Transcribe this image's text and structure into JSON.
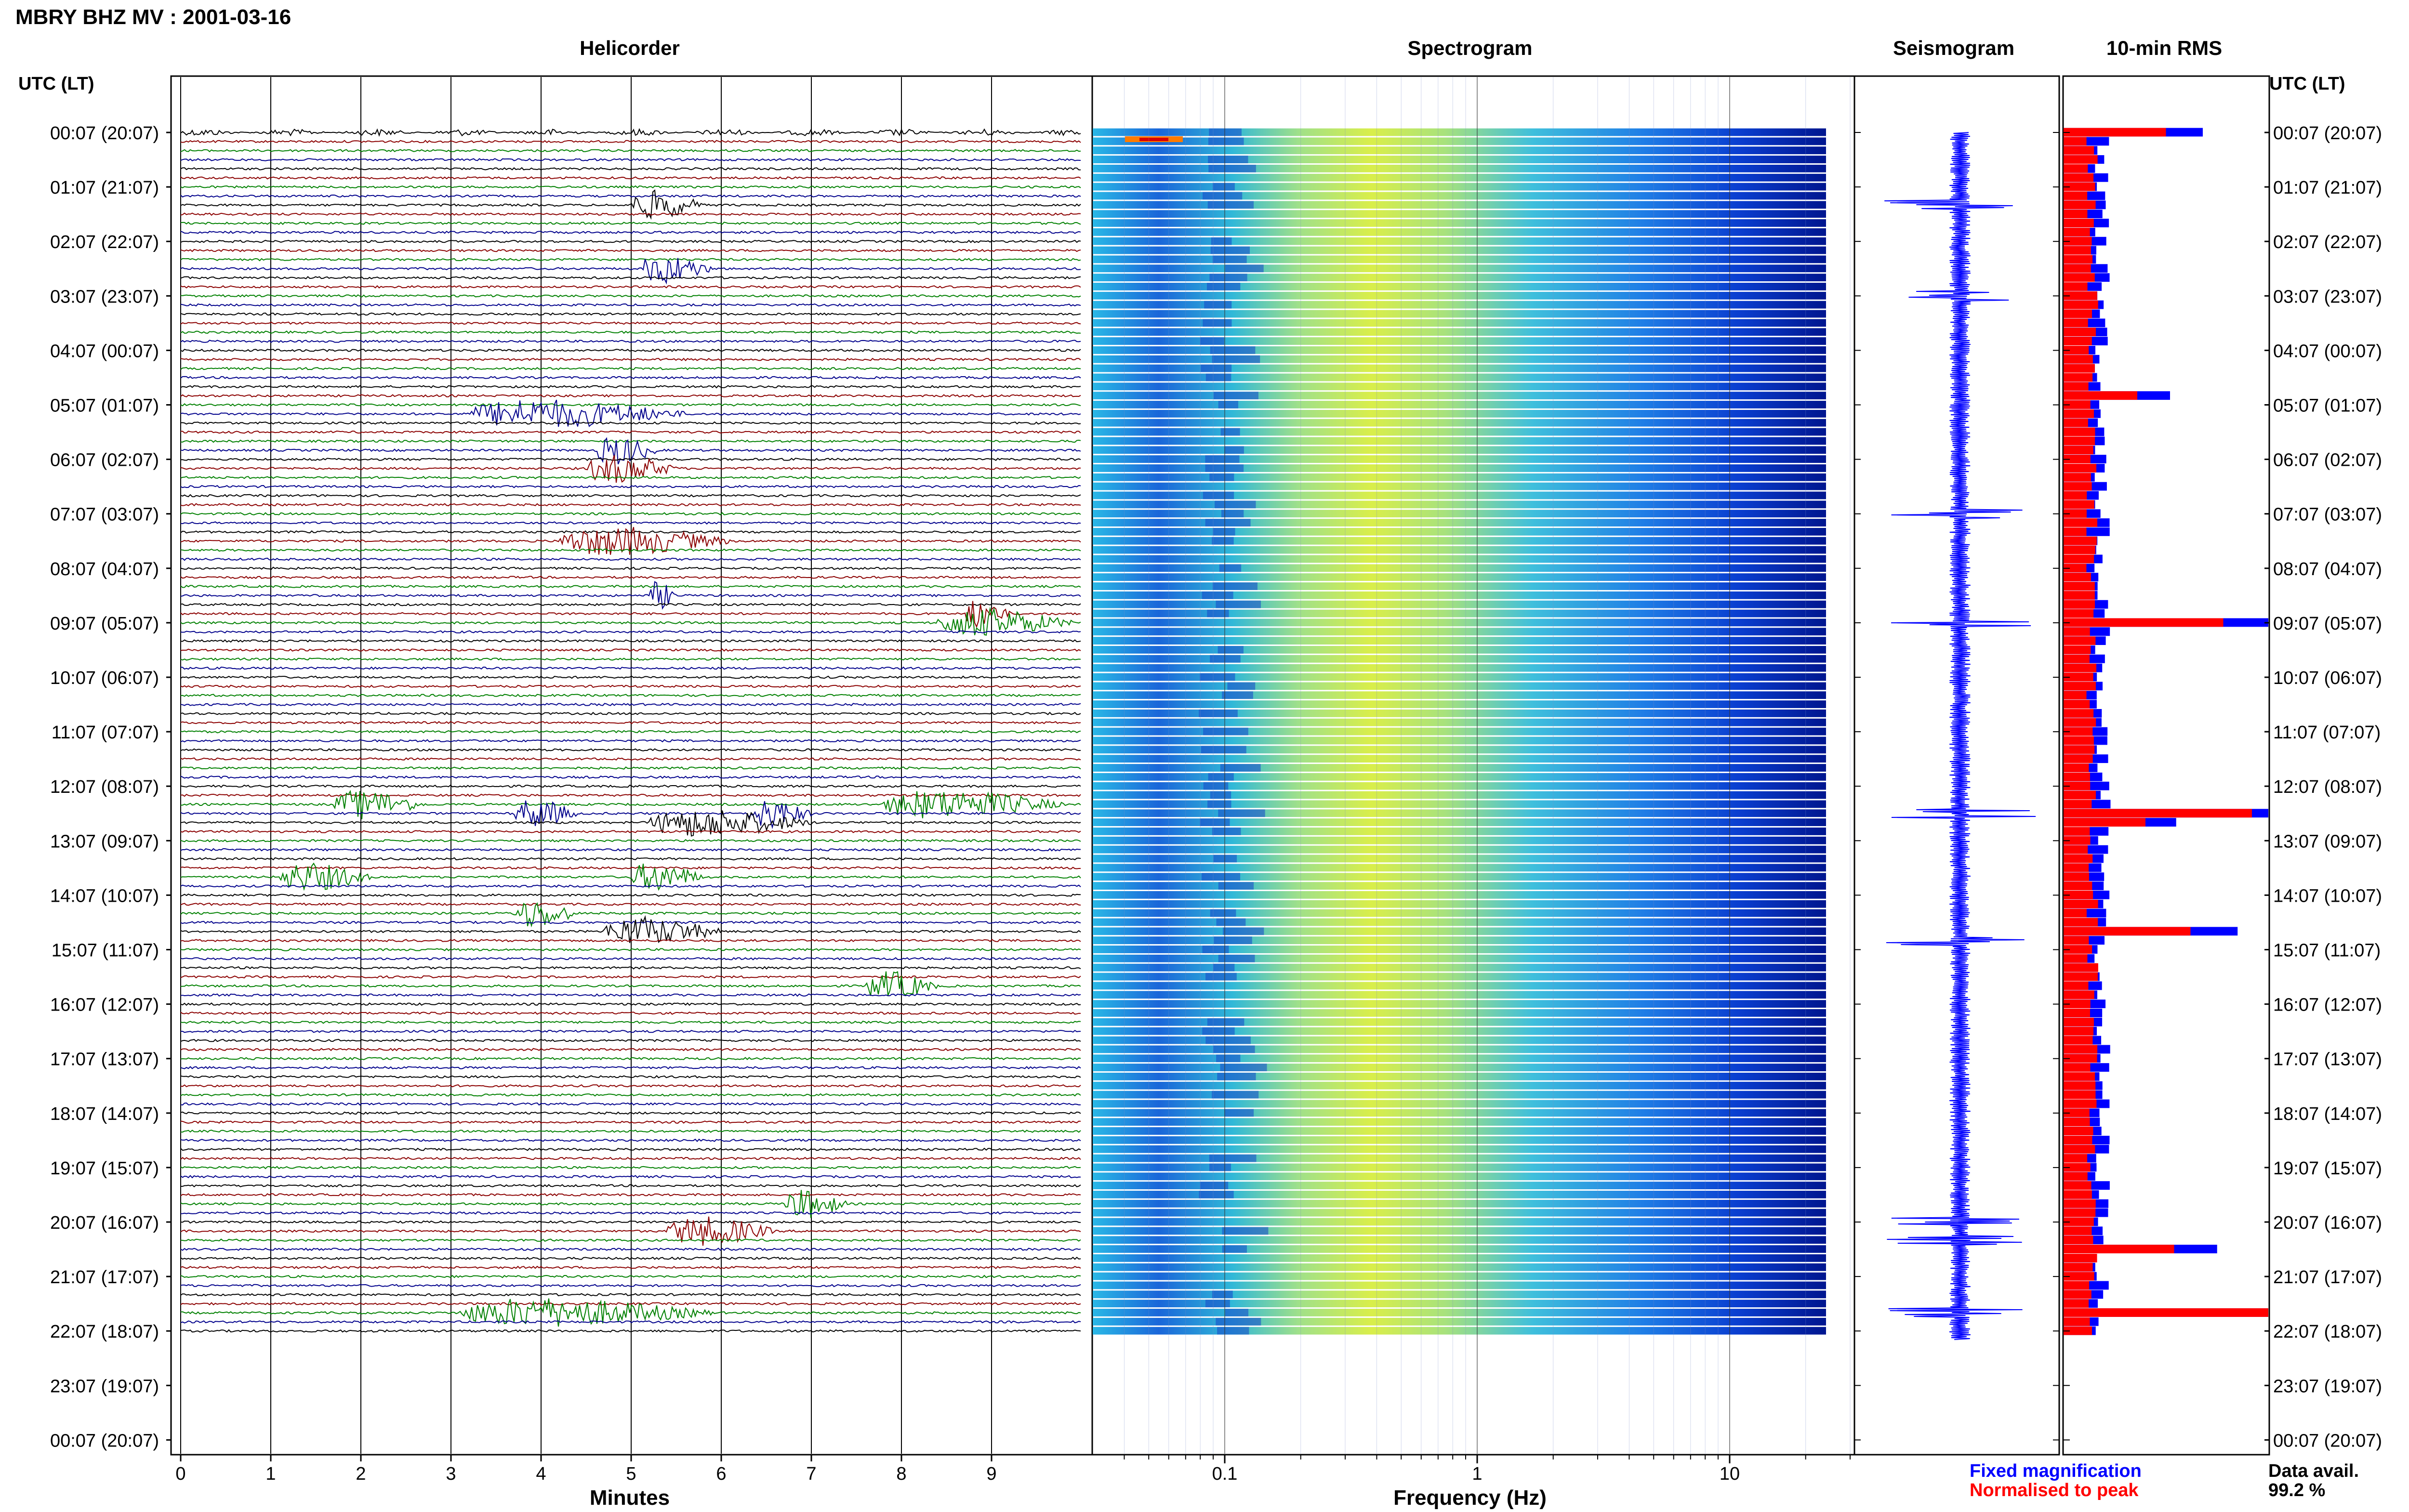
{
  "header": {
    "title": "MBRY BHZ MV : 2001-03-16",
    "utc_label_left": "UTC (LT)",
    "utc_label_right": "UTC (LT)"
  },
  "panels": {
    "helicorder": "Helicorder",
    "spectrogram": "Spectrogram",
    "seismogram": "Seismogram",
    "rms": "10-min RMS"
  },
  "time_labels": [
    "00:07 (20:07)",
    "01:07 (21:07)",
    "02:07 (22:07)",
    "03:07 (23:07)",
    "04:07 (00:07)",
    "05:07 (01:07)",
    "06:07 (02:07)",
    "07:07 (03:07)",
    "08:07 (04:07)",
    "09:07 (05:07)",
    "10:07 (06:07)",
    "11:07 (07:07)",
    "12:07 (08:07)",
    "13:07 (09:07)",
    "14:07 (10:07)",
    "15:07 (11:07)",
    "16:07 (12:07)",
    "17:07 (13:07)",
    "18:07 (14:07)",
    "19:07 (15:07)",
    "20:07 (16:07)",
    "21:07 (17:07)",
    "22:07 (18:07)",
    "23:07 (19:07)",
    "00:07 (20:07)"
  ],
  "legend": {
    "fixed": "Fixed magnification",
    "normalised": "Normalised to peak",
    "fixed_color": "#0000ff",
    "normalised_color": "#ff0000"
  },
  "data_availability": {
    "label": "Data avail.",
    "value": "99.2 %"
  },
  "trace_colors": [
    "#000000",
    "#8b0000",
    "#008000",
    "#00008b"
  ],
  "chart_data": [
    {
      "type": "line",
      "title": "Helicorder",
      "xlabel": "Minutes",
      "x_ticks": [
        "0",
        "1",
        "2",
        "3",
        "4",
        "5",
        "6",
        "7",
        "8",
        "9"
      ],
      "xlim": [
        0,
        10
      ],
      "rows_per_hour": 6,
      "row_minutes": 10,
      "grid": true,
      "event_windows": [
        {
          "row": 8,
          "minute_start": 5.0,
          "minute_end": 5.8
        },
        {
          "row": 15,
          "minute_start": 5.1,
          "minute_end": 5.9
        },
        {
          "row": 31,
          "minute_start": 3.2,
          "minute_end": 5.6
        },
        {
          "row": 35,
          "minute_start": 4.6,
          "minute_end": 5.3
        },
        {
          "row": 37,
          "minute_start": 4.5,
          "minute_end": 5.5
        },
        {
          "row": 45,
          "minute_start": 4.2,
          "minute_end": 6.1
        },
        {
          "row": 51,
          "minute_start": 5.2,
          "minute_end": 5.5
        },
        {
          "row": 53,
          "minute_start": 8.7,
          "minute_end": 9.2
        },
        {
          "row": 54,
          "minute_start": 8.4,
          "minute_end": 9.9
        },
        {
          "row": 74,
          "minute_start": 1.7,
          "minute_end": 2.7
        },
        {
          "row": 74,
          "minute_start": 7.8,
          "minute_end": 9.8
        },
        {
          "row": 75,
          "minute_start": 3.7,
          "minute_end": 4.4
        },
        {
          "row": 75,
          "minute_start": 6.3,
          "minute_end": 7.0
        },
        {
          "row": 76,
          "minute_start": 5.2,
          "minute_end": 7.0
        },
        {
          "row": 82,
          "minute_start": 1.1,
          "minute_end": 2.1
        },
        {
          "row": 82,
          "minute_start": 5.0,
          "minute_end": 5.8
        },
        {
          "row": 86,
          "minute_start": 3.7,
          "minute_end": 4.4
        },
        {
          "row": 88,
          "minute_start": 4.7,
          "minute_end": 6.0
        },
        {
          "row": 94,
          "minute_start": 7.6,
          "minute_end": 8.4
        },
        {
          "row": 118,
          "minute_start": 6.7,
          "minute_end": 7.4
        },
        {
          "row": 121,
          "minute_start": 5.4,
          "minute_end": 6.6
        },
        {
          "row": 130,
          "minute_start": 3.1,
          "minute_end": 5.9
        }
      ]
    },
    {
      "type": "heatmap",
      "title": "Spectrogram",
      "xlabel": "Frequency (Hz)",
      "x_scale": "log",
      "x_ticks": [
        "0.1",
        "1",
        "10"
      ],
      "xlim": [
        0.03,
        30
      ],
      "colormap": "jet"
    },
    {
      "type": "line",
      "title": "Seismogram",
      "spike_rows": [
        8,
        18,
        42,
        54,
        75,
        89,
        120,
        122,
        130
      ]
    },
    {
      "type": "bar",
      "title": "10-min RMS",
      "series": [
        {
          "name": "Fixed magnification",
          "color": "#0000ff"
        },
        {
          "name": "Normalised to peak",
          "color": "#ff0000"
        }
      ],
      "peak_rows": [
        {
          "row": 0,
          "fixed": 0.68,
          "normalised": 0.5
        },
        {
          "row": 29,
          "fixed": 0.52,
          "normalised": 0.36
        },
        {
          "row": 54,
          "fixed": 1.0,
          "normalised": 0.78
        },
        {
          "row": 75,
          "fixed": 1.0,
          "normalised": 0.92
        },
        {
          "row": 76,
          "fixed": 0.55,
          "normalised": 0.4
        },
        {
          "row": 88,
          "fixed": 0.85,
          "normalised": 0.62
        },
        {
          "row": 123,
          "fixed": 0.75,
          "normalised": 0.54
        },
        {
          "row": 130,
          "fixed": 1.0,
          "normalised": 1.0
        }
      ]
    }
  ]
}
